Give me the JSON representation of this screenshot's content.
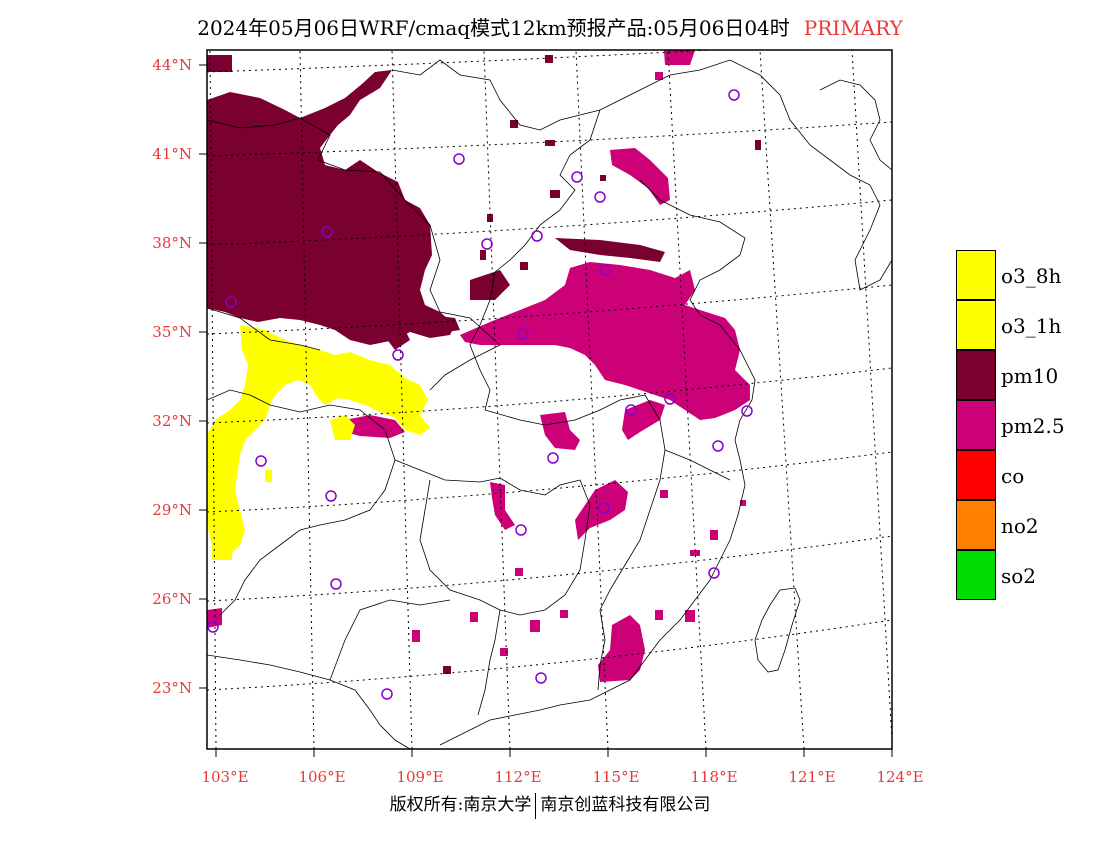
{
  "title": {
    "main": "2024年05月06日WRF/cmaq模式12km预报产品:05月06日04时",
    "tag": "PRIMARY"
  },
  "axes": {
    "lat_labels": [
      "44°N",
      "41°N",
      "38°N",
      "35°N",
      "32°N",
      "29°N",
      "26°N",
      "23°N"
    ],
    "lon_labels": [
      "103°E",
      "106°E",
      "109°E",
      "112°E",
      "115°E",
      "118°E",
      "121°E",
      "124°E"
    ]
  },
  "legend": [
    {
      "label": "o3_8h",
      "color": "#ffff00"
    },
    {
      "label": "o3_1h",
      "color": "#ffff00"
    },
    {
      "label": "pm10",
      "color": "#7a0030"
    },
    {
      "label": "pm2.5",
      "color": "#cc0077"
    },
    {
      "label": "co",
      "color": "#ff0000"
    },
    {
      "label": "no2",
      "color": "#ff8000"
    },
    {
      "label": "so2",
      "color": "#00dd00"
    }
  ],
  "footer": {
    "left": "版权所有:南京大学",
    "right": "南京创蓝科技有限公司"
  }
}
